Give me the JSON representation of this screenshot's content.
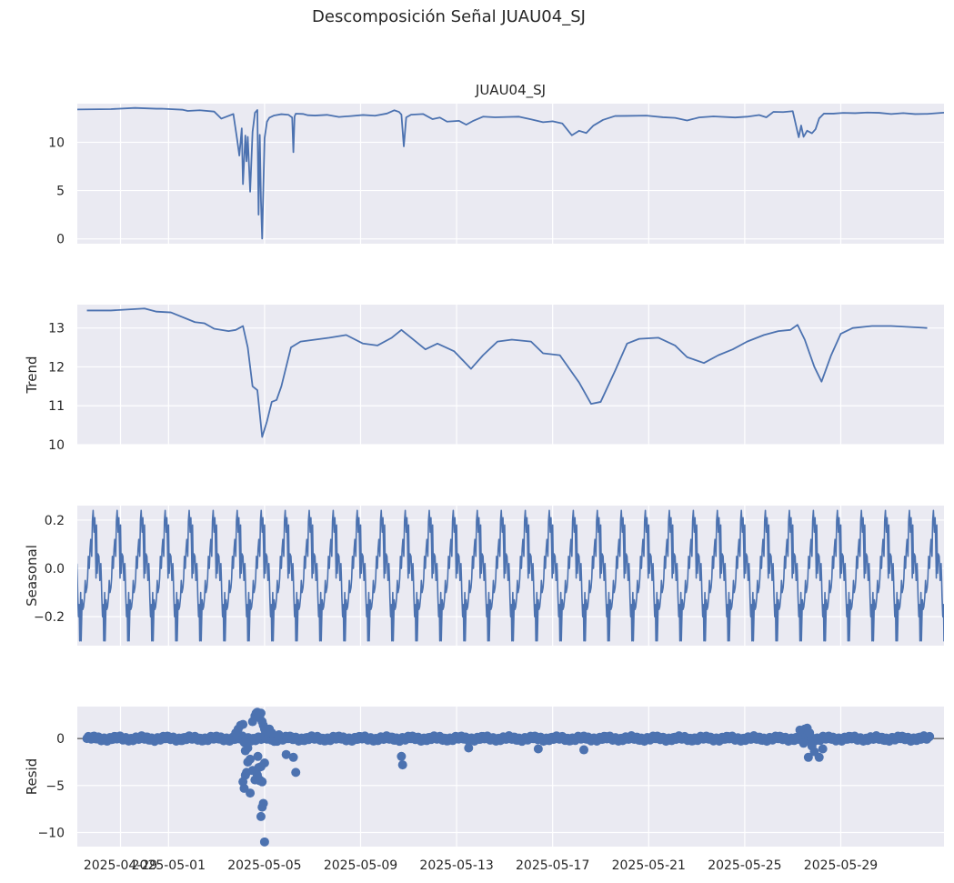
{
  "figure": {
    "suptitle": "Descomposición Señal JUAU04_SJ"
  },
  "colors": {
    "line": "#4c72b0",
    "panel_bg": "#eaeaf2",
    "grid": "#ffffff",
    "text": "#262626"
  },
  "chart_data": [
    {
      "type": "line",
      "panel": "observed",
      "title": "JUAU04_SJ",
      "ylabel": "",
      "ylim": [
        -0.5,
        14.0
      ],
      "yticks": [
        0,
        5,
        10
      ],
      "ytick_labels": [
        "0",
        "5",
        "10"
      ],
      "x_range_days": [
        -3.9,
        32.2
      ],
      "x_note": "day offsets from 2025-05-01",
      "series": [
        {
          "name": "observed",
          "x": [
            -3.9,
            -2.5,
            -1.5,
            -0.6,
            -0.4,
            0.5,
            0.7,
            1.2,
            1.8,
            2.1,
            2.6,
            2.75,
            2.85,
            2.95,
            3.0,
            3.1,
            3.15,
            3.2,
            3.3,
            3.4,
            3.5,
            3.6,
            3.65,
            3.7,
            3.75,
            3.8,
            3.9,
            4.0,
            4.1,
            4.3,
            4.6,
            4.9,
            5.05,
            5.1,
            5.15,
            5.2,
            5.5,
            5.7,
            6.0,
            6.5,
            7.0,
            7.5,
            8.0,
            8.5,
            9.0,
            9.3,
            9.5,
            9.6,
            9.7,
            9.8,
            10.0,
            10.5,
            10.9,
            11.2,
            11.5,
            12.0,
            12.3,
            12.6,
            13.0,
            13.5,
            14.0,
            14.5,
            15.0,
            15.5,
            15.9,
            16.3,
            16.7,
            17.0,
            17.3,
            17.6,
            18.0,
            18.5,
            19.0,
            19.8,
            20.5,
            21.0,
            21.5,
            22.0,
            22.6,
            23.5,
            24.0,
            24.5,
            24.8,
            25.1,
            25.5,
            25.9,
            26.15,
            26.25,
            26.35,
            26.5,
            26.7,
            26.85,
            27.0,
            27.2,
            27.6,
            28.0,
            28.5,
            29.0,
            29.5,
            30.0,
            30.5,
            31.0,
            31.5,
            32.2
          ],
          "y": [
            13.4,
            13.4,
            13.5,
            13.4,
            13.4,
            13.3,
            13.2,
            13.3,
            13.2,
            12.5,
            13.0,
            10.5,
            8.7,
            11.5,
            5.7,
            10.7,
            8.0,
            10.5,
            4.8,
            11.0,
            13.0,
            13.3,
            2.5,
            10.8,
            4.0,
            0.1,
            10.5,
            12.2,
            12.6,
            12.8,
            12.9,
            12.8,
            12.5,
            8.9,
            12.6,
            12.9,
            12.9,
            12.8,
            12.8,
            12.9,
            12.7,
            12.8,
            12.9,
            12.8,
            13.0,
            13.3,
            13.1,
            12.8,
            9.5,
            12.5,
            12.8,
            12.9,
            12.4,
            12.6,
            12.2,
            12.3,
            11.9,
            12.3,
            12.7,
            12.6,
            12.6,
            12.6,
            12.3,
            12.0,
            12.1,
            11.9,
            10.7,
            11.2,
            11.0,
            11.8,
            12.4,
            12.8,
            12.8,
            12.8,
            12.6,
            12.5,
            12.2,
            12.5,
            12.6,
            12.5,
            12.6,
            12.8,
            12.6,
            13.2,
            13.2,
            13.3,
            10.6,
            11.8,
            10.6,
            11.2,
            10.9,
            11.3,
            12.4,
            12.9,
            12.9,
            13.0,
            13.0,
            13.1,
            13.1,
            13.0,
            13.1,
            13.0,
            13.0,
            13.1
          ]
        }
      ]
    },
    {
      "type": "line",
      "panel": "trend",
      "title": "",
      "ylabel": "Trend",
      "ylim": [
        10.0,
        13.6
      ],
      "yticks": [
        10,
        11,
        12,
        13
      ],
      "ytick_labels": [
        "10",
        "11",
        "12",
        "13"
      ],
      "x_range_days": [
        -3.9,
        32.2
      ],
      "series": [
        {
          "name": "trend",
          "x": [
            -3.5,
            -2.5,
            -1.1,
            -0.6,
            0.0,
            1.0,
            1.4,
            1.8,
            2.4,
            2.7,
            3.0,
            3.2,
            3.4,
            3.6,
            3.8,
            4.0,
            4.2,
            4.4,
            4.6,
            5.0,
            5.4,
            6.0,
            6.6,
            7.3,
            8.0,
            8.6,
            9.2,
            9.6,
            10.0,
            10.6,
            11.1,
            11.8,
            12.5,
            13.0,
            13.6,
            14.2,
            15.0,
            15.5,
            16.2,
            17.0,
            17.5,
            17.9,
            18.5,
            19.0,
            19.5,
            20.3,
            21.0,
            21.5,
            22.2,
            22.8,
            23.4,
            24.0,
            24.7,
            25.3,
            25.8,
            26.1,
            26.4,
            26.8,
            27.1,
            27.5,
            27.9,
            28.4,
            29.2,
            30.0,
            31.5
          ],
          "y": [
            13.45,
            13.45,
            13.5,
            13.42,
            13.4,
            13.15,
            13.12,
            12.98,
            12.92,
            12.95,
            13.05,
            12.5,
            11.5,
            11.4,
            10.2,
            10.6,
            11.1,
            11.15,
            11.5,
            12.5,
            12.65,
            12.7,
            12.75,
            12.82,
            12.6,
            12.55,
            12.75,
            12.95,
            12.75,
            12.45,
            12.6,
            12.4,
            11.95,
            12.3,
            12.65,
            12.7,
            12.65,
            12.35,
            12.3,
            11.6,
            11.05,
            11.1,
            11.9,
            12.6,
            12.72,
            12.75,
            12.55,
            12.25,
            12.1,
            12.3,
            12.45,
            12.65,
            12.82,
            12.92,
            12.95,
            13.08,
            12.7,
            12.0,
            11.62,
            12.3,
            12.85,
            13.0,
            13.05,
            13.05,
            13.0
          ]
        }
      ]
    },
    {
      "type": "line",
      "panel": "seasonal",
      "title": "",
      "ylabel": "Seasonal",
      "ylim": [
        -0.32,
        0.26
      ],
      "yticks": [
        -0.2,
        0.0,
        0.2
      ],
      "ytick_labels": [
        "−0.2",
        "0.0",
        "0.2"
      ],
      "x_range_days": [
        -3.9,
        32.2
      ],
      "period_days": 1,
      "daily_pattern": {
        "phase": [
          0.0,
          0.04,
          0.08,
          0.1,
          0.12,
          0.15,
          0.18,
          0.2,
          0.24,
          0.26,
          0.3,
          0.33,
          0.36,
          0.4,
          0.43,
          0.46,
          0.5,
          0.53,
          0.56,
          0.6,
          0.63,
          0.66,
          0.7,
          0.73,
          0.76,
          0.8,
          0.83,
          0.86,
          0.88,
          0.9,
          0.93,
          0.96,
          1.0
        ],
        "y": [
          0.05,
          -0.05,
          0.02,
          -0.04,
          -0.12,
          -0.2,
          -0.15,
          -0.3,
          -0.1,
          -0.3,
          -0.13,
          -0.17,
          -0.16,
          -0.12,
          -0.05,
          -0.1,
          -0.08,
          -0.04,
          0.05,
          0.0,
          0.08,
          0.12,
          0.05,
          0.2,
          0.24,
          0.15,
          0.21,
          0.08,
          -0.04,
          0.18,
          -0.02,
          0.06,
          0.05
        ]
      }
    },
    {
      "type": "scatter",
      "panel": "resid",
      "title": "",
      "ylabel": "Resid",
      "ylim": [
        -11.5,
        3.4
      ],
      "yticks": [
        -10,
        -5,
        0
      ],
      "ytick_labels": [
        "−10",
        "−5",
        "0"
      ],
      "x_range_days": [
        -3.9,
        32.2
      ],
      "baseline": 0,
      "xtick_days": [
        -2.1,
        -0.1,
        3.9,
        7.9,
        11.9,
        15.9,
        19.9,
        23.9,
        27.9
      ],
      "xtick_labels": [
        "2025-04-29",
        "2025-05-01",
        "2025-05-05",
        "2025-05-09",
        "2025-05-13",
        "2025-05-17",
        "2025-05-21",
        "2025-05-25",
        "2025-05-29"
      ],
      "series": [
        {
          "name": "resid_excursions",
          "x": [
            2.7,
            2.8,
            2.9,
            3.0,
            3.05,
            3.1,
            3.2,
            3.3,
            3.4,
            3.5,
            3.55,
            3.6,
            3.65,
            3.7,
            3.75,
            3.8,
            3.85,
            3.9,
            4.0,
            4.1,
            4.2,
            4.3,
            4.5,
            4.8,
            5.1,
            5.2,
            3.65,
            3.7,
            3.75,
            3.8,
            3.85,
            3.9,
            3.0,
            3.05,
            3.1,
            3.15,
            3.2,
            3.3,
            3.4,
            3.5,
            3.6,
            3.7,
            3.8,
            3.9,
            3.62,
            3.75,
            9.6,
            9.65,
            12.4,
            15.3,
            17.2,
            26.3,
            26.4,
            26.5,
            26.55,
            26.7,
            26.8,
            27.0,
            27.15,
            26.2,
            26.35,
            26.6
          ],
          "y": [
            0.6,
            1.0,
            1.4,
            1.5,
            -0.4,
            -1.3,
            -1.0,
            -2.2,
            1.8,
            2.4,
            2.7,
            2.8,
            2.6,
            2.2,
            2.7,
            1.8,
            1.4,
            1.0,
            0.8,
            1.0,
            0.6,
            -0.3,
            0.4,
            -1.7,
            -2.0,
            -3.6,
            -3.1,
            -4.4,
            -8.3,
            -7.3,
            -6.9,
            -11.0,
            -4.6,
            -5.3,
            -3.9,
            -3.6,
            -2.5,
            -5.8,
            -3.4,
            -4.4,
            -3.9,
            -4.5,
            -4.6,
            -2.6,
            -1.9,
            -3.0,
            -1.9,
            -2.8,
            -1.0,
            -1.1,
            -1.2,
            0.8,
            1.0,
            1.1,
            -2.0,
            -0.8,
            -1.4,
            -2.0,
            -1.1,
            0.9,
            -0.5,
            0.6
          ]
        }
      ]
    }
  ]
}
